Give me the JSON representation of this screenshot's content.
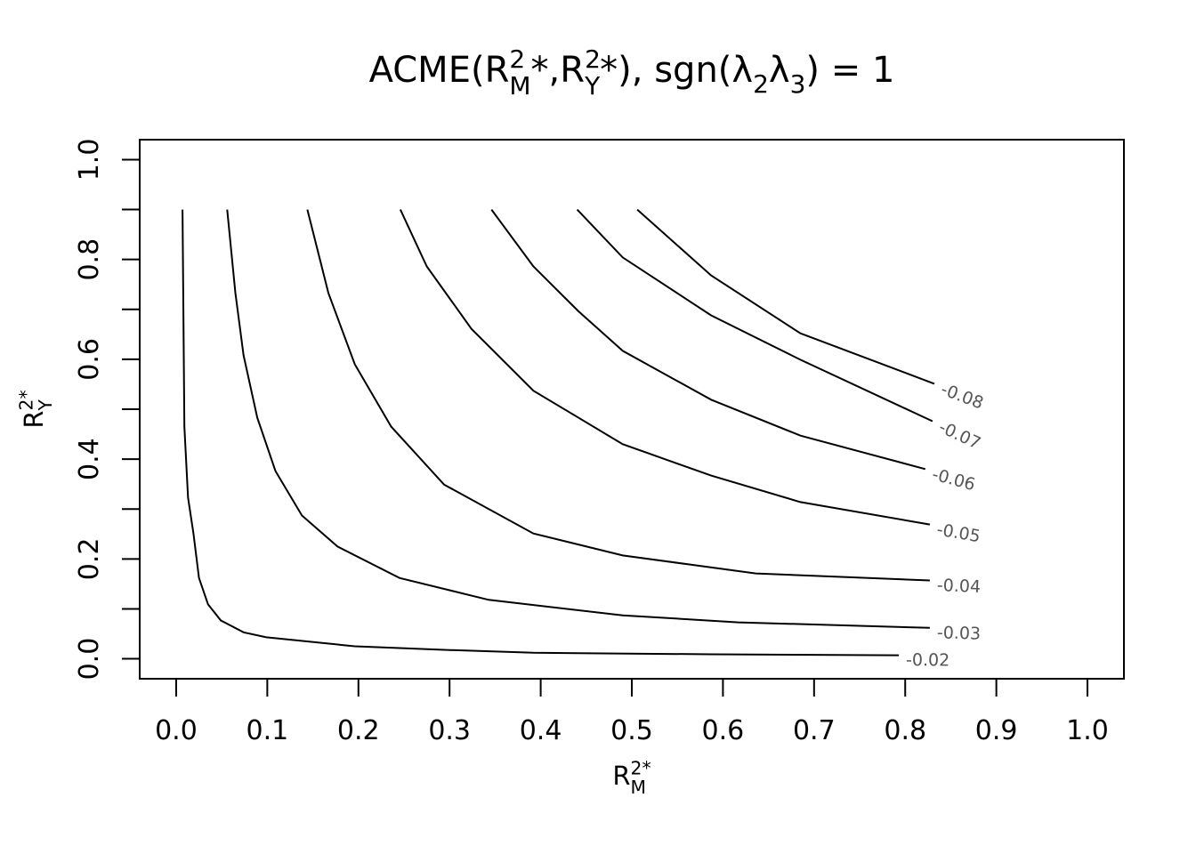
{
  "chart_data": {
    "type": "contour",
    "title": {
      "runs": [
        {
          "text": "ACME(R"
        },
        {
          "sup": "2",
          "sub": "M"
        },
        {
          "text": "*,R"
        },
        {
          "sup": "2",
          "sub": "Y"
        },
        {
          "text": "*), sgn(λ"
        },
        {
          "sub": "2"
        },
        {
          "text": "λ"
        },
        {
          "sub": "3"
        },
        {
          "text": ") = 1"
        }
      ]
    },
    "xlabel": {
      "runs": [
        {
          "text": "R"
        },
        {
          "sup": "2*",
          "sub": "M"
        }
      ]
    },
    "ylabel": {
      "runs": [
        {
          "text": "R"
        },
        {
          "sup": "2*",
          "sub": "Y"
        }
      ]
    },
    "xlim": [
      -0.04,
      1.04
    ],
    "ylim": [
      -0.04,
      1.04
    ],
    "xticks": [
      {
        "value": 0,
        "label": "0.0"
      },
      0.1,
      0.2,
      0.3,
      0.4,
      0.5,
      0.6,
      0.7,
      0.8,
      0.9,
      {
        "value": 1,
        "label": "1.0"
      }
    ],
    "yticks": [
      {
        "value": 0,
        "label": "0.0"
      },
      0.2,
      0.4,
      0.6,
      0.8,
      {
        "value": 1,
        "label": "1.0"
      }
    ],
    "yminor_ticks": [
      0.1,
      0.3,
      0.5,
      0.7,
      0.9
    ],
    "color": "#000000",
    "contours": [
      {
        "level": -0.02,
        "x": [
          0.007,
          0.009,
          0.013,
          0.019,
          0.025,
          0.035,
          0.049,
          0.074,
          0.099,
          0.196,
          0.294,
          0.392,
          0.587,
          0.793
        ],
        "y": [
          0.9,
          0.465,
          0.323,
          0.251,
          0.162,
          0.109,
          0.077,
          0.053,
          0.043,
          0.025,
          0.018,
          0.012,
          0.009,
          0.007
        ]
      },
      {
        "level": -0.03,
        "x": [
          0.056,
          0.065,
          0.074,
          0.089,
          0.109,
          0.138,
          0.177,
          0.245,
          0.343,
          0.49,
          0.617,
          0.827
        ],
        "y": [
          0.9,
          0.733,
          0.608,
          0.483,
          0.376,
          0.287,
          0.225,
          0.162,
          0.118,
          0.087,
          0.073,
          0.062
        ]
      },
      {
        "level": -0.04,
        "x": [
          0.144,
          0.167,
          0.196,
          0.236,
          0.294,
          0.392,
          0.49,
          0.636,
          0.827
        ],
        "y": [
          0.9,
          0.733,
          0.59,
          0.465,
          0.349,
          0.251,
          0.207,
          0.171,
          0.157
        ]
      },
      {
        "level": -0.05,
        "x": [
          0.246,
          0.275,
          0.324,
          0.392,
          0.49,
          0.587,
          0.685,
          0.827
        ],
        "y": [
          0.9,
          0.786,
          0.661,
          0.537,
          0.43,
          0.367,
          0.314,
          0.269
        ]
      },
      {
        "level": -0.06,
        "x": [
          0.346,
          0.392,
          0.441,
          0.49,
          0.587,
          0.685,
          0.822
        ],
        "y": [
          0.9,
          0.786,
          0.697,
          0.617,
          0.519,
          0.447,
          0.38
        ]
      },
      {
        "level": -0.07,
        "x": [
          0.44,
          0.49,
          0.587,
          0.685,
          0.83
        ],
        "y": [
          0.9,
          0.804,
          0.688,
          0.599,
          0.476
        ]
      },
      {
        "level": -0.08,
        "x": [
          0.506,
          0.587,
          0.685,
          0.832
        ],
        "y": [
          0.9,
          0.768,
          0.652,
          0.551
        ]
      }
    ]
  }
}
